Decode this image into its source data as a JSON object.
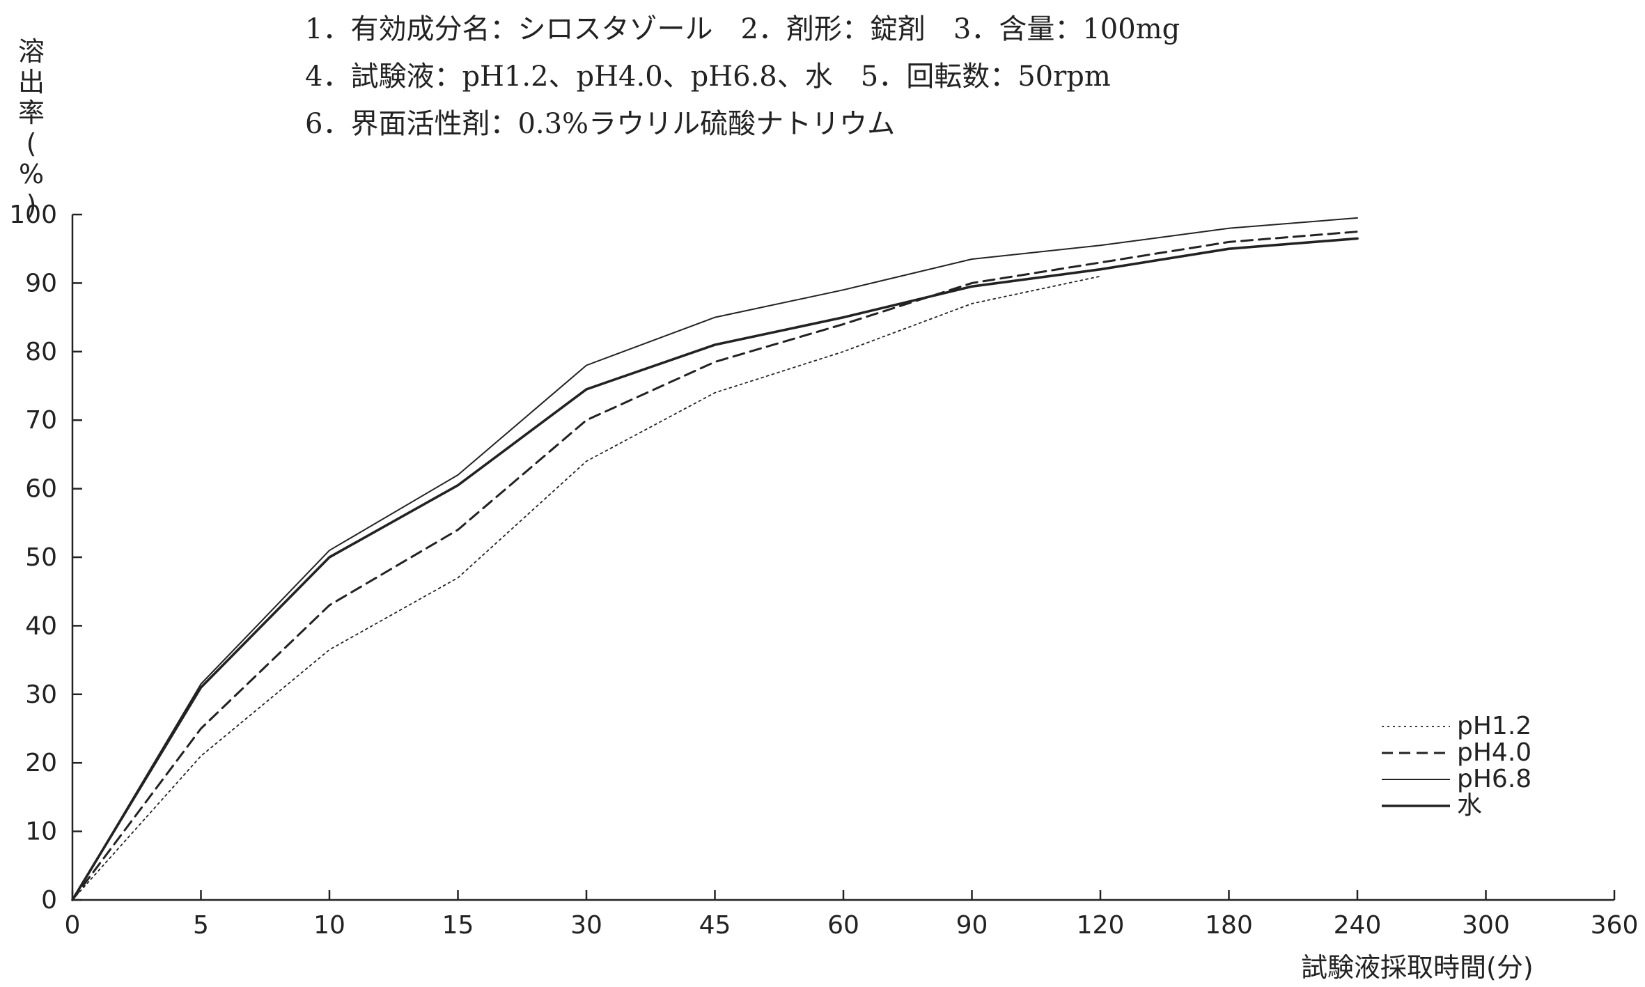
{
  "header": {
    "line1": "1．有効成分名：シロスタゾール　2．剤形：錠剤　3．含量：100mg",
    "line2": "4．試験液：pH1.2、pH4.0、pH6.8、水　5．回転数：50rpm",
    "line3": "6．界面活性剤：0.3%ラウリル硫酸ナトリウム"
  },
  "chart_data": {
    "type": "line",
    "title": "",
    "xlabel": "試験液採取時間(分)",
    "ylabel": "溶出率(%)",
    "ylabel_chars": [
      "溶",
      "出",
      "率",
      "(",
      "%",
      ")"
    ],
    "ylim": [
      0,
      100
    ],
    "yticks": [
      "0",
      "10",
      "20",
      "30",
      "40",
      "50",
      "60",
      "70",
      "80",
      "90",
      "100"
    ],
    "categories": [
      "0",
      "5",
      "10",
      "15",
      "30",
      "45",
      "60",
      "90",
      "120",
      "180",
      "240",
      "300",
      "360"
    ],
    "grid": false,
    "legend_position": "bottom-right",
    "series": [
      {
        "name": "pH1.2",
        "style": "dotted",
        "values": [
          0,
          21,
          36.5,
          47,
          64,
          74,
          80,
          87,
          91,
          null,
          null,
          null,
          null
        ]
      },
      {
        "name": "pH4.0",
        "style": "dashed",
        "values": [
          0,
          25,
          43,
          54,
          70,
          78.5,
          84,
          90,
          93,
          96,
          97.5,
          null,
          null
        ]
      },
      {
        "name": "pH6.8",
        "style": "solid-thin",
        "values": [
          0,
          31.5,
          51,
          62,
          78,
          85,
          89,
          93.5,
          95.5,
          98,
          99.5,
          null,
          null
        ]
      },
      {
        "name": "水",
        "style": "solid-thick",
        "values": [
          0,
          31,
          50,
          60.5,
          74.5,
          81,
          85,
          89.5,
          92,
          95,
          96.5,
          null,
          null
        ]
      }
    ],
    "colors": {
      "line": "#222222"
    }
  }
}
